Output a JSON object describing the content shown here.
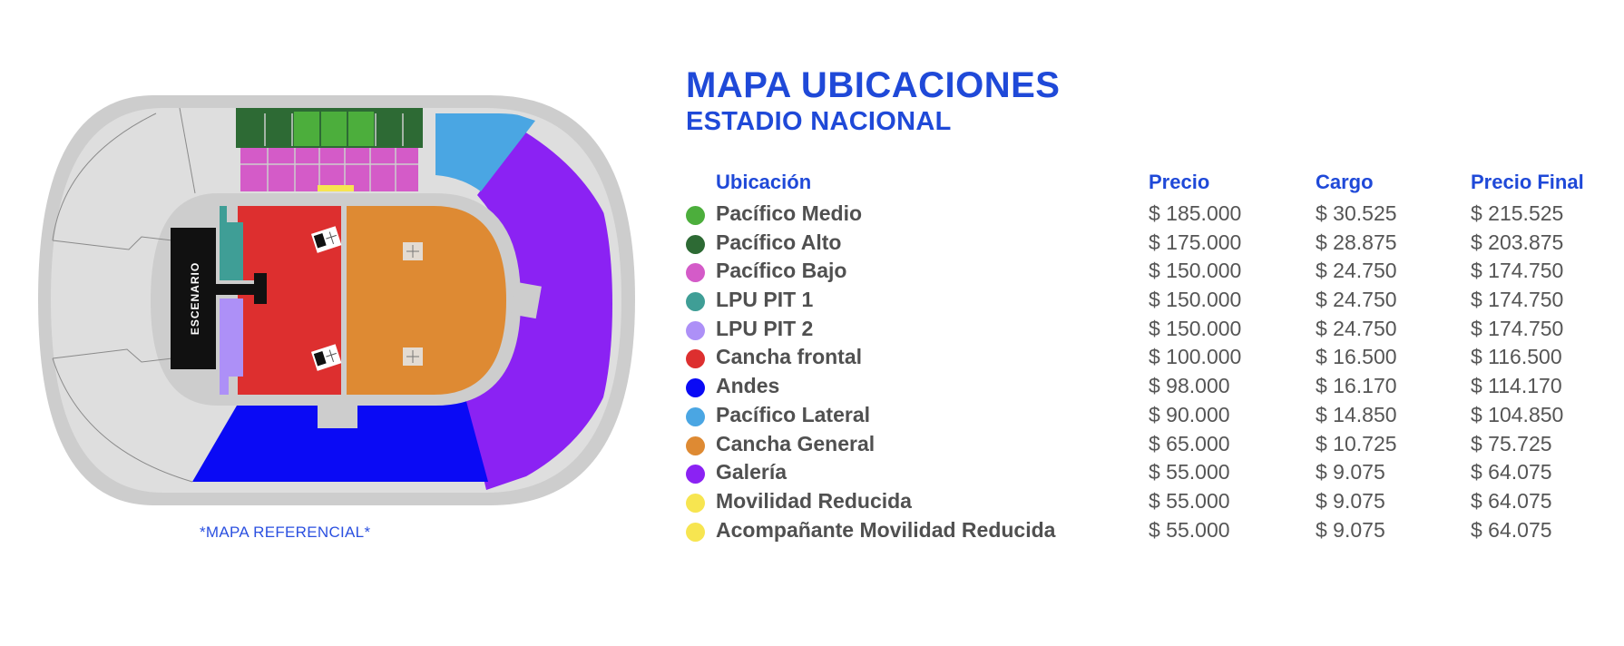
{
  "map": {
    "stage_label": "ESCENARIO",
    "note": "*MAPA REFERENCIAL*"
  },
  "header": {
    "title": "MAPA UBICACIONES",
    "subtitle": "ESTADIO NACIONAL"
  },
  "table": {
    "columns": [
      "Ubicación",
      "Precio",
      "Cargo",
      "Precio Final"
    ],
    "rows": [
      {
        "name": "Pacífico Medio",
        "color": "#4cae3c",
        "price": "$ 185.000",
        "cargo": "$ 30.525",
        "final": "$ 215.525"
      },
      {
        "name": "Pacífico Alto",
        "color": "#2d6a34",
        "price": "$ 175.000",
        "cargo": "$ 28.875",
        "final": "$ 203.875"
      },
      {
        "name": "Pacífico Bajo",
        "color": "#d45bc8",
        "price": "$ 150.000",
        "cargo": "$ 24.750",
        "final": "$ 174.750"
      },
      {
        "name": "LPU PIT 1",
        "color": "#3f9e96",
        "price": "$ 150.000",
        "cargo": "$ 24.750",
        "final": "$ 174.750"
      },
      {
        "name": "LPU PIT 2",
        "color": "#ad90f7",
        "price": "$ 150.000",
        "cargo": "$ 24.750",
        "final": "$ 174.750"
      },
      {
        "name": "Cancha frontal",
        "color": "#dd2f2f",
        "price": "$ 100.000",
        "cargo": "$ 16.500",
        "final": "$ 116.500"
      },
      {
        "name": "Andes",
        "color": "#0a0af5",
        "price": "$ 98.000",
        "cargo": "$ 16.170",
        "final": "$ 114.170"
      },
      {
        "name": "Pacífico Lateral",
        "color": "#4aa6e3",
        "price": "$ 90.000",
        "cargo": "$ 14.850",
        "final": "$ 104.850"
      },
      {
        "name": "Cancha General",
        "color": "#de8a33",
        "price": "$ 65.000",
        "cargo": "$ 10.725",
        "final": "$ 75.725"
      },
      {
        "name": "Galería",
        "color": "#8b22f3",
        "price": "$ 55.000",
        "cargo": "$ 9.075",
        "final": "$ 64.075"
      },
      {
        "name": "Movilidad Reducida",
        "color": "#f7e550",
        "price": "$ 55.000",
        "cargo": "$ 9.075",
        "final": "$ 64.075"
      },
      {
        "name": "Acompañante Movilidad Reducida",
        "color": "#f7e550",
        "price": "$ 55.000",
        "cargo": "$ 9.075",
        "final": "$ 64.075"
      }
    ]
  }
}
